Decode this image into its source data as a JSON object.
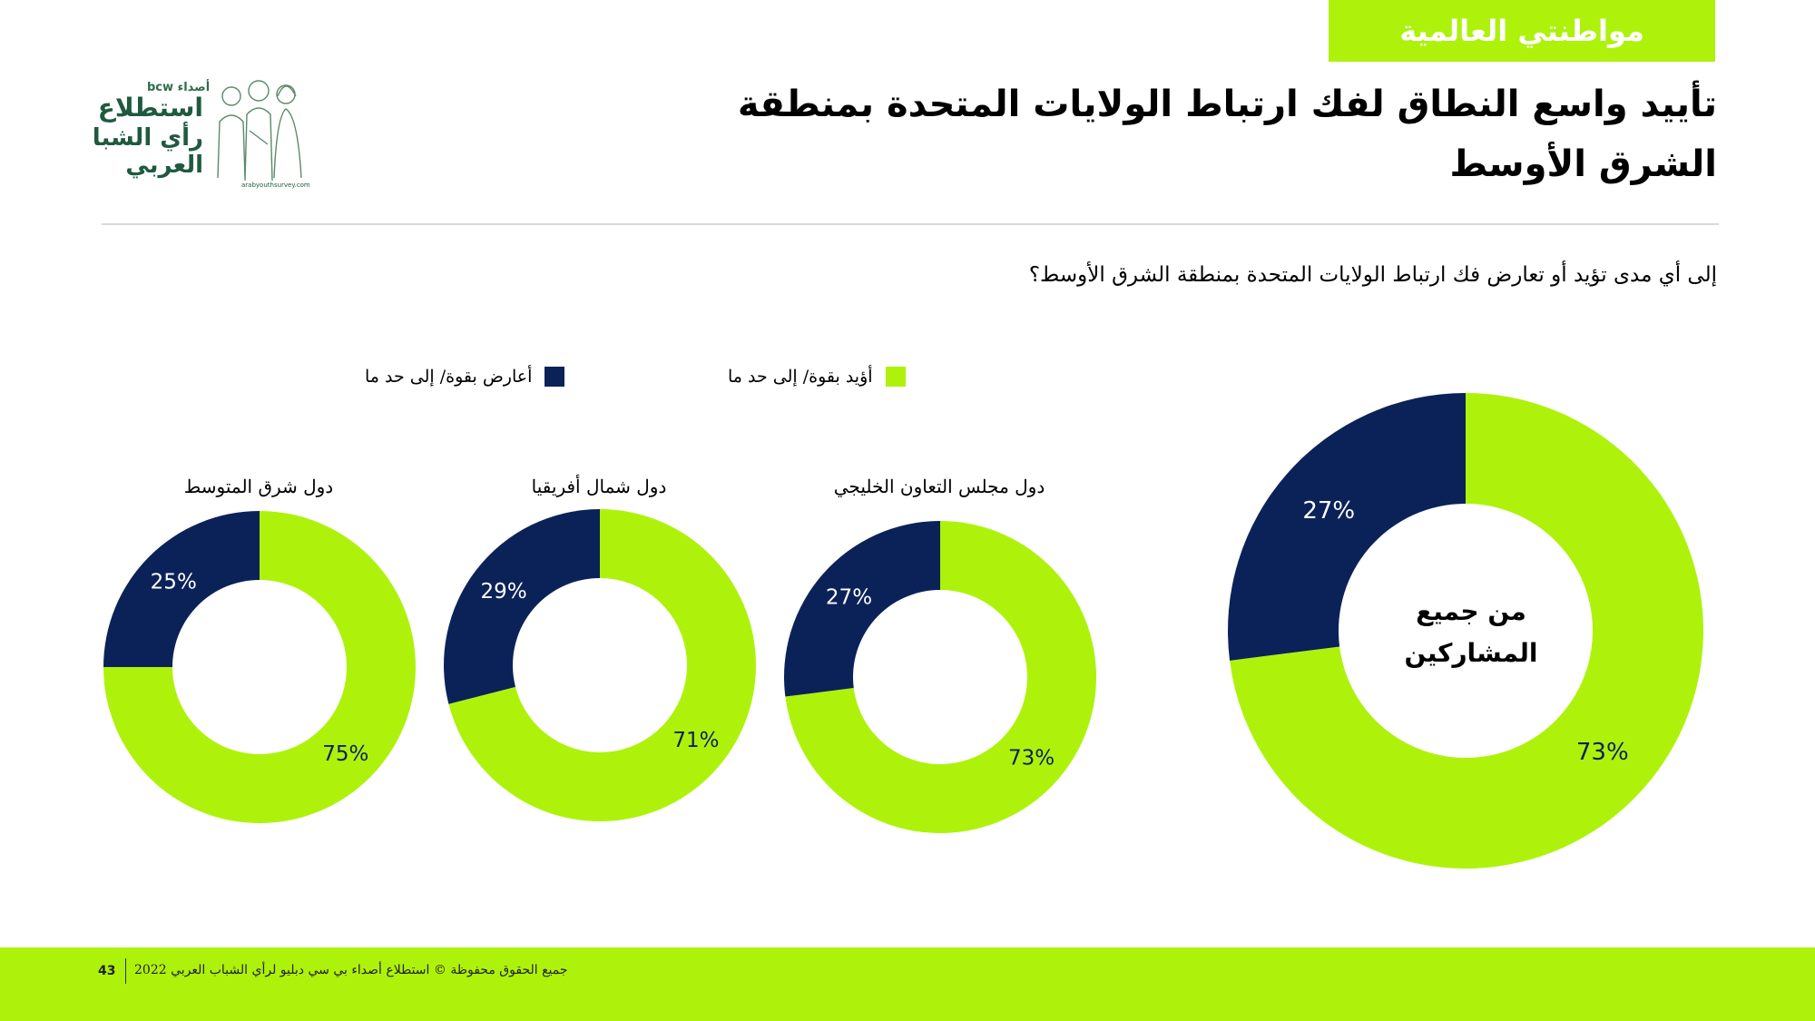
{
  "header": {
    "section_tag": "مواطنتي العالمية",
    "title_line1": "تأييد واسع النطاق لفك ارتباط الولايات المتحدة بمنطقة",
    "title_line2": "الشرق الأوسط",
    "question": "إلى أي مدى تؤيد أو تعارض فك ارتباط الولايات المتحدة بمنطقة الشرق الأوسط؟"
  },
  "logo": {
    "brand_small": "bcw أصداء",
    "line1": "استطلاع",
    "line2": "رأي الشباب",
    "line3": "العربي",
    "url": "arabyouthsurvey.com"
  },
  "legend": {
    "support_label": "أؤيد بقوة/ إلى حد ما",
    "oppose_label": "أعارض بقوة/ إلى حد ما"
  },
  "colors": {
    "support": "#aef20c",
    "oppose": "#0b2259",
    "accent": "#aef20c"
  },
  "chart_data": [
    {
      "type": "pie",
      "title": "من جميع المشاركين",
      "categories": [
        "أؤيد بقوة/ إلى حد ما",
        "أعارض بقوة/ إلى حد ما"
      ],
      "values": [
        73,
        27
      ],
      "labels": [
        "73%",
        "27%"
      ]
    },
    {
      "type": "pie",
      "title": "دول مجلس التعاون الخليجي",
      "categories": [
        "أؤيد بقوة/ إلى حد ما",
        "أعارض بقوة/ إلى حد ما"
      ],
      "values": [
        73,
        27
      ],
      "labels": [
        "73%",
        "27%"
      ]
    },
    {
      "type": "pie",
      "title": "دول شمال أفريقيا",
      "categories": [
        "أؤيد بقوة/ إلى حد ما",
        "أعارض بقوة/ إلى حد ما"
      ],
      "values": [
        71,
        29
      ],
      "labels": [
        "71%",
        "29%"
      ]
    },
    {
      "type": "pie",
      "title": "دول شرق المتوسط",
      "categories": [
        "أؤيد بقوة/ إلى حد ما",
        "أعارض بقوة/ إلى حد ما"
      ],
      "values": [
        75,
        25
      ],
      "labels": [
        "75%",
        "25%"
      ]
    }
  ],
  "footer": {
    "copyright": "جميع الحقوق محفوظة © استطلاع أصداء بي سي دبليو لرأي الشباب العربي 2022",
    "page_number": "43"
  }
}
